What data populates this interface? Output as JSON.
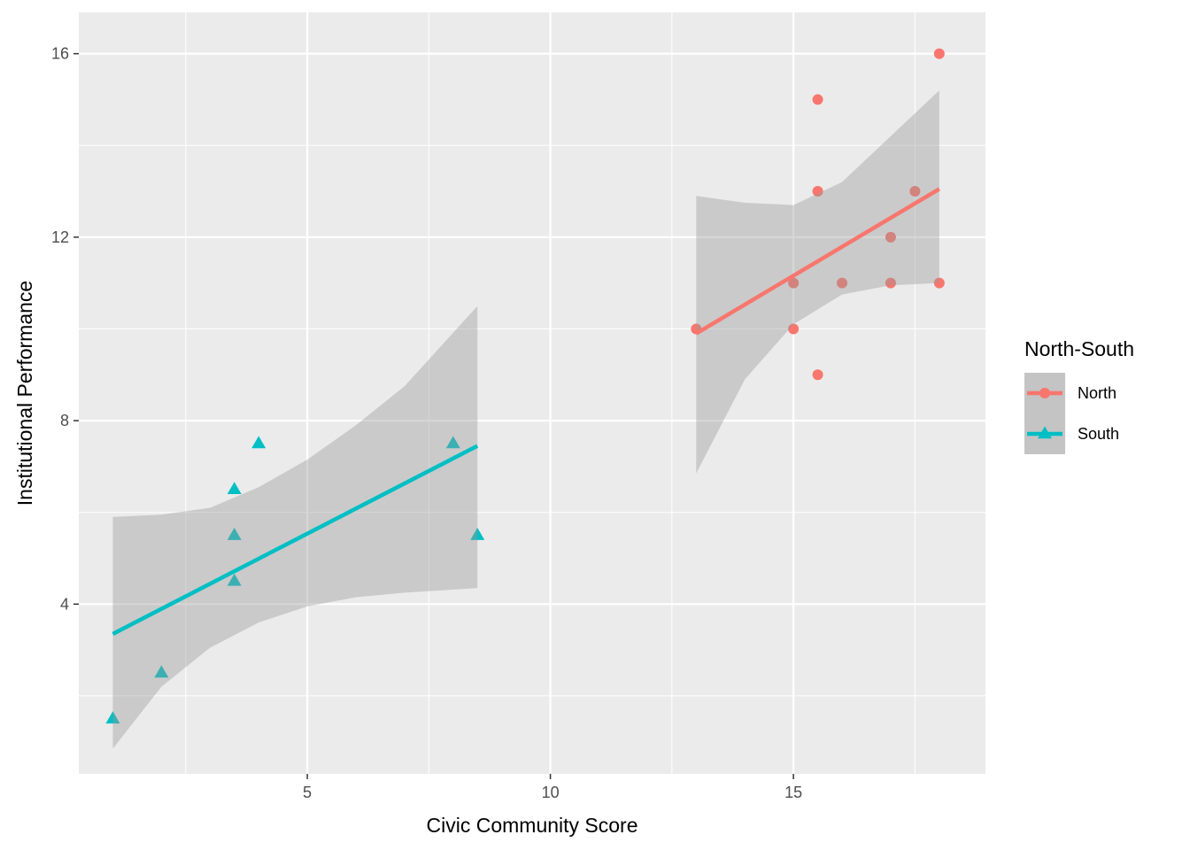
{
  "chart_data": {
    "type": "scatter",
    "title": "",
    "xlabel": "Civic Community Score",
    "ylabel": "Institutional Performance",
    "xlim": [
      0.3,
      18.95
    ],
    "ylim": [
      0.3,
      16.9
    ],
    "x_ticks": [
      5,
      10,
      15
    ],
    "y_ticks": [
      4,
      8,
      12,
      16
    ],
    "grid": true,
    "legend": {
      "title": "North-South",
      "placement": "right"
    },
    "series": [
      {
        "name": "North",
        "color": "#F8766D",
        "marker": "circle",
        "points": [
          {
            "x": 13,
            "y": 10
          },
          {
            "x": 15,
            "y": 11
          },
          {
            "x": 15,
            "y": 10
          },
          {
            "x": 15.5,
            "y": 15
          },
          {
            "x": 15.5,
            "y": 13
          },
          {
            "x": 15.5,
            "y": 9
          },
          {
            "x": 16,
            "y": 11
          },
          {
            "x": 17,
            "y": 12
          },
          {
            "x": 17,
            "y": 11
          },
          {
            "x": 17.5,
            "y": 13
          },
          {
            "x": 18,
            "y": 16
          },
          {
            "x": 18,
            "y": 11
          }
        ],
        "fit": {
          "line": [
            [
              13,
              9.9
            ],
            [
              18,
              13.05
            ]
          ],
          "band": [
            [
              13,
              6.85,
              12.9
            ],
            [
              14,
              8.9,
              12.75
            ],
            [
              15,
              10.1,
              12.7
            ],
            [
              16,
              10.75,
              13.2
            ],
            [
              17,
              10.95,
              14.2
            ],
            [
              18,
              11.0,
              15.2
            ]
          ]
        }
      },
      {
        "name": "South",
        "color": "#00BFC4",
        "marker": "triangle",
        "points": [
          {
            "x": 1,
            "y": 1.5
          },
          {
            "x": 2,
            "y": 2.5
          },
          {
            "x": 3.5,
            "y": 6.5
          },
          {
            "x": 3.5,
            "y": 5.5
          },
          {
            "x": 3.5,
            "y": 4.5
          },
          {
            "x": 4,
            "y": 7.5
          },
          {
            "x": 8,
            "y": 7.5
          },
          {
            "x": 8.5,
            "y": 5.5
          }
        ],
        "fit": {
          "line": [
            [
              1,
              3.35
            ],
            [
              8.5,
              7.45
            ]
          ],
          "band": [
            [
              1,
              0.85,
              5.9
            ],
            [
              2,
              2.2,
              5.95
            ],
            [
              3,
              3.05,
              6.1
            ],
            [
              4,
              3.6,
              6.55
            ],
            [
              5,
              3.95,
              7.15
            ],
            [
              6,
              4.15,
              7.9
            ],
            [
              7,
              4.25,
              8.75
            ],
            [
              8.5,
              4.35,
              10.5
            ]
          ]
        }
      }
    ]
  }
}
